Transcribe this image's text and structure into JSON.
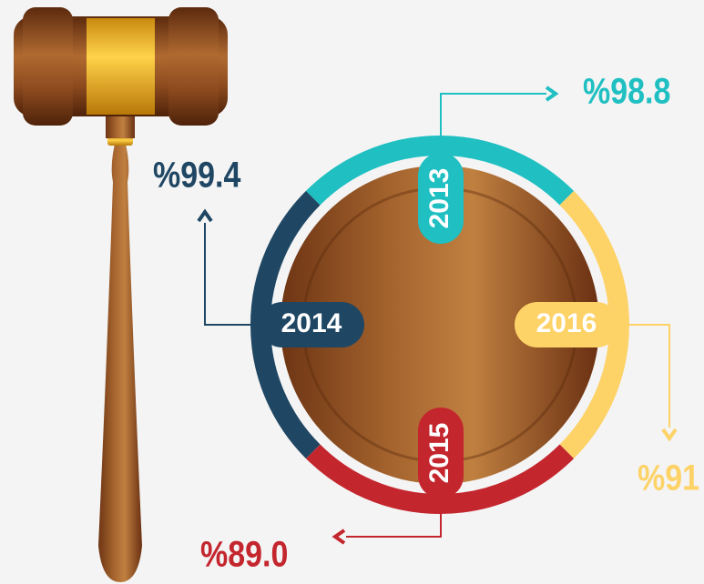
{
  "items": [
    {
      "year": "2013",
      "value": "%98.8",
      "color": "#1fbfc2"
    },
    {
      "year": "2016",
      "value": "%91",
      "color": "#fdd267"
    },
    {
      "year": "2015",
      "value": "%89.0",
      "color": "#c4262e"
    },
    {
      "year": "2014",
      "value": "%99.4",
      "color": "#1f4663"
    }
  ]
}
